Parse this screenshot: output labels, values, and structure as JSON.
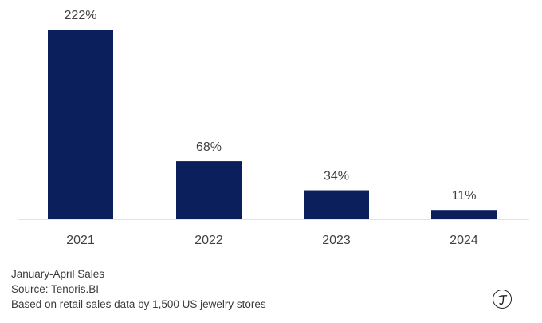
{
  "chart_data": {
    "type": "bar",
    "categories": [
      "2021",
      "2022",
      "2023",
      "2024"
    ],
    "values": [
      222,
      68,
      34,
      11
    ],
    "data_labels": [
      "222%",
      "68%",
      "34%",
      "11%"
    ],
    "unit": "%",
    "ylim": [
      0,
      222
    ],
    "grid": false,
    "legend": "none",
    "bar_color": "#0b1f5c",
    "title": "",
    "xlabel": "",
    "ylabel": ""
  },
  "notes": {
    "line1": "January-April Sales",
    "line2": "Source: Tenoris.BI",
    "line3": "Based on retail sales data by 1,500 US jewelry stores"
  },
  "brand": {
    "icon": "tenoris-logo-icon"
  }
}
